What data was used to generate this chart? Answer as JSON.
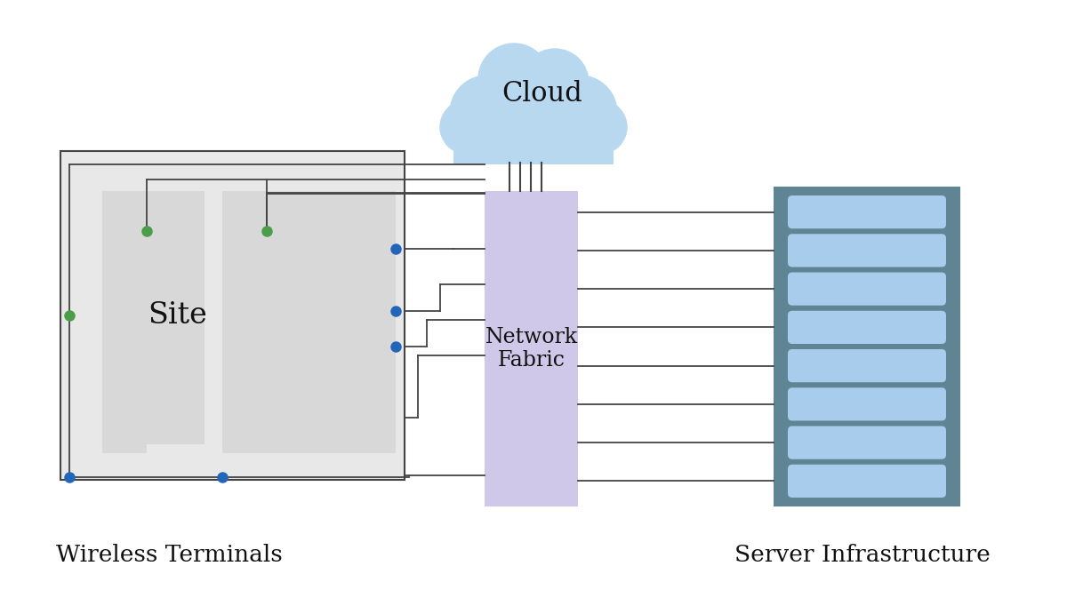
{
  "bg_color": "#ffffff",
  "site_color": "#e8e8e8",
  "site_inner_color": "#d8d8d8",
  "network_fabric_color": "#cfc8e8",
  "server_bg_color": "#5f8595",
  "server_slot_color": "#a8ccec",
  "cloud_color": "#b8d8f0",
  "line_color": "#444444",
  "green_dot_color": "#4a9e4a",
  "blue_dot_color": "#2266bb",
  "label_wireless": "Wireless Terminals",
  "label_server": "Server Infrastructure",
  "label_site": "Site",
  "label_cloud": "Cloud",
  "label_fabric": "Network\nFabric",
  "fig_width": 12.0,
  "fig_height": 6.73
}
